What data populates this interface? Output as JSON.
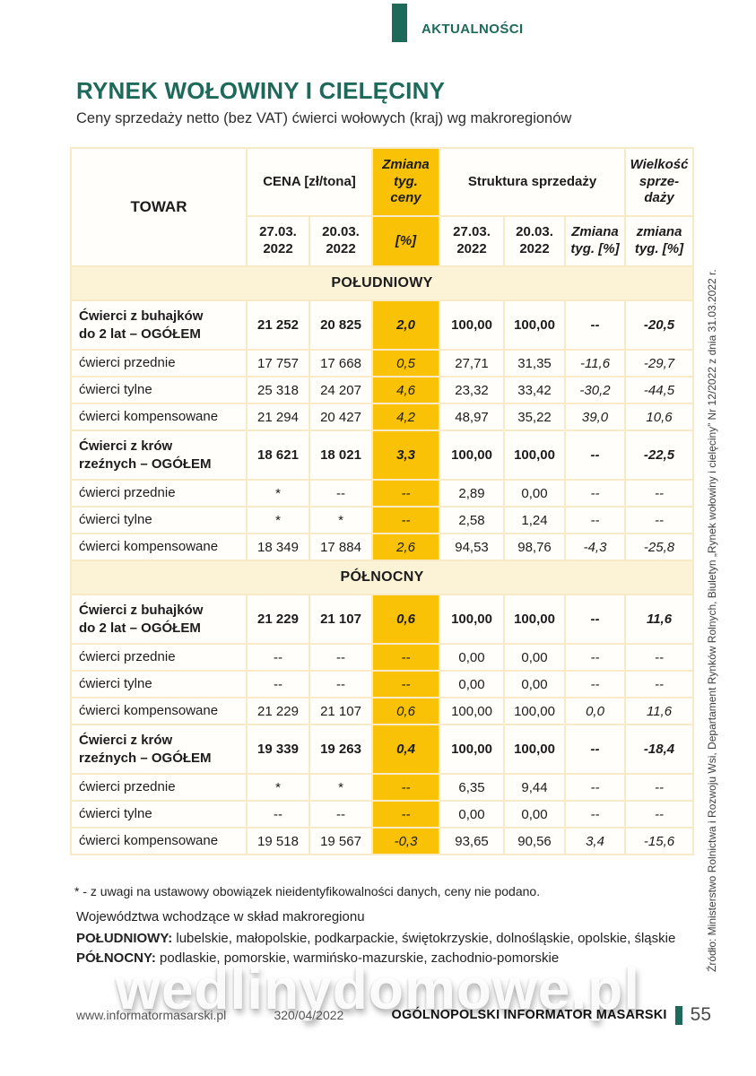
{
  "masthead": {
    "section_label": "AKTUALNOŚCI"
  },
  "article": {
    "title": "RYNEK WOŁOWINY I CIELĘCINY",
    "subtitle": "Ceny sprzedaży netto (bez VAT) ćwierci wołowych (kraj) wg makroregionów"
  },
  "table": {
    "headers": {
      "towar": "TOWAR",
      "cena": "CENA [zł/tona]",
      "zmiana_ceny": "Zmiana\ntyg.\nceny",
      "struktura": "Struktura sprzedaży",
      "wielkosc": "Wielkość\nsprze-\ndaży",
      "date1": "27.03.\n2022",
      "date2": "20.03.\n2022",
      "pct": "[%]",
      "zmiana_tyg": "Zmiana\ntyg. [%]",
      "zmiana_tyg_w": "zmiana\ntyg. [%]"
    },
    "sections": [
      {
        "name": "POŁUDNIOWY",
        "rows": [
          {
            "label": "Ćwierci z buhajków\ndo 2 lat – OGÓŁEM",
            "bold": true,
            "values": [
              "21 252",
              "20 825",
              "2,0",
              "100,00",
              "100,00",
              "--",
              "-20,5"
            ]
          },
          {
            "label": "ćwierci przednie",
            "bold": false,
            "values": [
              "17 757",
              "17 668",
              "0,5",
              "27,71",
              "31,35",
              "-11,6",
              "-29,7"
            ]
          },
          {
            "label": "ćwierci tylne",
            "bold": false,
            "values": [
              "25 318",
              "24 207",
              "4,6",
              "23,32",
              "33,42",
              "-30,2",
              "-44,5"
            ]
          },
          {
            "label": "ćwierci kompensowane",
            "bold": false,
            "values": [
              "21 294",
              "20 427",
              "4,2",
              "48,97",
              "35,22",
              "39,0",
              "10,6"
            ]
          },
          {
            "label": "Ćwierci z krów\nrzeźnych – OGÓŁEM",
            "bold": true,
            "values": [
              "18 621",
              "18 021",
              "3,3",
              "100,00",
              "100,00",
              "--",
              "-22,5"
            ]
          },
          {
            "label": "ćwierci przednie",
            "bold": false,
            "values": [
              "*",
              "--",
              "--",
              "2,89",
              "0,00",
              "--",
              "--"
            ]
          },
          {
            "label": "ćwierci tylne",
            "bold": false,
            "values": [
              "*",
              "*",
              "--",
              "2,58",
              "1,24",
              "--",
              "--"
            ]
          },
          {
            "label": "ćwierci kompensowane",
            "bold": false,
            "values": [
              "18 349",
              "17 884",
              "2,6",
              "94,53",
              "98,76",
              "-4,3",
              "-25,8"
            ]
          }
        ]
      },
      {
        "name": "PÓŁNOCNY",
        "rows": [
          {
            "label": "Ćwierci z buhajków\ndo 2 lat – OGÓŁEM",
            "bold": true,
            "values": [
              "21 229",
              "21 107",
              "0,6",
              "100,00",
              "100,00",
              "--",
              "11,6"
            ]
          },
          {
            "label": "ćwierci przednie",
            "bold": false,
            "values": [
              "--",
              "--",
              "--",
              "0,00",
              "0,00",
              "--",
              "--"
            ]
          },
          {
            "label": "ćwierci tylne",
            "bold": false,
            "values": [
              "--",
              "--",
              "--",
              "0,00",
              "0,00",
              "--",
              "--"
            ]
          },
          {
            "label": "ćwierci kompensowane",
            "bold": false,
            "values": [
              "21 229",
              "21 107",
              "0,6",
              "100,00",
              "100,00",
              "0,0",
              "11,6"
            ]
          },
          {
            "label": "Ćwierci z krów\nrzeźnych – OGÓŁEM",
            "bold": true,
            "values": [
              "19 339",
              "19 263",
              "0,4",
              "100,00",
              "100,00",
              "--",
              "-18,4"
            ]
          },
          {
            "label": "ćwierci przednie",
            "bold": false,
            "values": [
              "*",
              "*",
              "--",
              "6,35",
              "9,44",
              "--",
              "--"
            ]
          },
          {
            "label": "ćwierci tylne",
            "bold": false,
            "values": [
              "--",
              "--",
              "--",
              "0,00",
              "0,00",
              "--",
              "--"
            ]
          },
          {
            "label": "ćwierci kompensowane",
            "bold": false,
            "values": [
              "19 518",
              "19 567",
              "-0,3",
              "93,65",
              "90,56",
              "3,4",
              "-15,6"
            ]
          }
        ]
      }
    ]
  },
  "notes": {
    "footnote": "* - z uwagi na ustawowy obowiązek nieidentyfikowalności danych, ceny nie podano."
  },
  "regions": {
    "intro": "Województwa wchodzące w skład makroregionu",
    "items": [
      {
        "label": "POŁUDNIOWY:",
        "text": "  lubelskie, małopolskie, podkarpackie, świętokrzyskie, dolnośląskie, opolskie, śląskie"
      },
      {
        "label": "PÓŁNOCNY:",
        "text": " podlaskie, pomorskie, warmińsko-mazurskie, zachodnio-pomorskie"
      }
    ]
  },
  "source": {
    "text": "Źródło: Ministerstwo Rolnictwa i Rozwoju Wsi, Departament Rynków Rolnych, Biuletyn „Rynek wołowiny i cielęciny” Nr 12/2022 z dnia 31.03.2022 r."
  },
  "watermark": {
    "text": "wedlinydomowe.pl"
  },
  "footer": {
    "website": "www.informatormasarski.pl",
    "issue": "320/04/2022",
    "magazine": "OGÓLNOPOLSKI INFORMATOR MASARSKI",
    "page": "55"
  },
  "colors": {
    "teal": "#1e6a5a",
    "yellow": "#f9c207",
    "cream": "#fcf2d6",
    "table_line": "#f8eac6"
  }
}
